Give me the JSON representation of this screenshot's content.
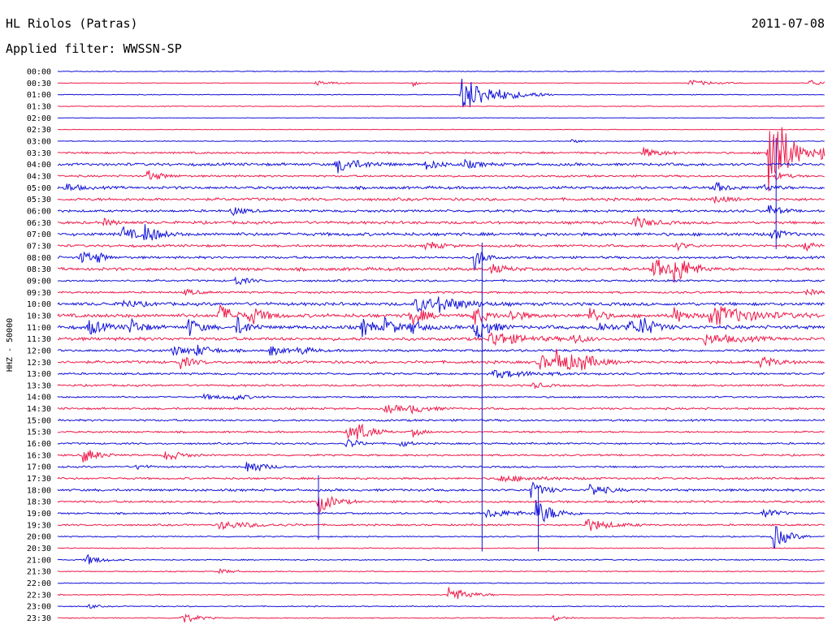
{
  "header": {
    "station": "HL Riolos (Patras)",
    "filter": "Applied filter: WWSSN-SP",
    "date": "2011-07-08"
  },
  "chart_data": {
    "type": "line",
    "title": "HL Riolos (Patras)",
    "subtitle": "Applied filter: WWSSN-SP",
    "date": "2011-07-08",
    "ylabel": "HHZ - 50000",
    "row_times": [
      "00:00",
      "00:30",
      "01:00",
      "01:30",
      "02:00",
      "02:30",
      "03:00",
      "03:30",
      "04:00",
      "04:30",
      "05:00",
      "05:30",
      "06:00",
      "06:30",
      "07:00",
      "07:30",
      "08:00",
      "08:30",
      "09:00",
      "09:30",
      "10:00",
      "10:30",
      "11:00",
      "11:30",
      "12:00",
      "12:30",
      "13:00",
      "13:30",
      "14:00",
      "14:30",
      "15:00",
      "15:30",
      "16:00",
      "16:30",
      "17:00",
      "17:30",
      "18:00",
      "18:30",
      "19:00",
      "19:30",
      "20:00",
      "20:30",
      "21:00",
      "21:30",
      "22:00",
      "22:30",
      "23:00",
      "23:30"
    ],
    "x_range_minutes": [
      0,
      30
    ],
    "colors": {
      "even": "#1010d8",
      "odd": "#ee1a4a"
    },
    "noise": [
      0.4,
      0.3,
      0.4,
      0.4,
      0.3,
      0.3,
      0.4,
      1.0,
      1.4,
      1.0,
      1.4,
      1.4,
      1.2,
      1.4,
      1.6,
      1.2,
      1.2,
      1.6,
      1.0,
      1.0,
      1.6,
      1.8,
      1.8,
      1.6,
      1.2,
      1.4,
      1.0,
      1.0,
      0.8,
      1.0,
      1.0,
      0.9,
      0.9,
      0.9,
      0.9,
      1.0,
      1.2,
      1.1,
      0.9,
      0.9,
      0.6,
      0.5,
      0.6,
      0.5,
      0.5,
      0.5,
      0.5,
      0.5
    ],
    "events": [
      {
        "row": 1,
        "t": 10.1,
        "amp": 3,
        "dur": 0.6
      },
      {
        "row": 1,
        "t": 13.9,
        "amp": 4,
        "dur": 0.2
      },
      {
        "row": 1,
        "t": 24.7,
        "amp": 4,
        "dur": 0.8
      },
      {
        "row": 1,
        "t": 29.4,
        "amp": 4,
        "dur": 0.5
      },
      {
        "row": 2,
        "t": 15.8,
        "amp": 22,
        "dur": 1.2
      },
      {
        "row": 6,
        "t": 20.1,
        "amp": 2,
        "dur": 0.4
      },
      {
        "row": 7,
        "t": 22.9,
        "amp": 6,
        "dur": 0.6
      },
      {
        "row": 7,
        "t": 27.8,
        "amp": 76,
        "dur": 0.6
      },
      {
        "row": 7,
        "t": 29.8,
        "amp": 10,
        "dur": 0.4
      },
      {
        "row": 8,
        "t": 10.9,
        "amp": 10,
        "dur": 0.8
      },
      {
        "row": 8,
        "t": 14.4,
        "amp": 6,
        "dur": 0.5
      },
      {
        "row": 8,
        "t": 15.9,
        "amp": 5,
        "dur": 0.5
      },
      {
        "row": 9,
        "t": 3.5,
        "amp": 7,
        "dur": 0.5
      },
      {
        "row": 9,
        "t": 28.1,
        "amp": 5,
        "dur": 0.4
      },
      {
        "row": 10,
        "t": 0.3,
        "amp": 6,
        "dur": 0.4
      },
      {
        "row": 10,
        "t": 25.7,
        "amp": 7,
        "dur": 0.4
      },
      {
        "row": 10,
        "t": 27.6,
        "amp": 5,
        "dur": 0.4
      },
      {
        "row": 11,
        "t": 25.7,
        "amp": 5,
        "dur": 0.4
      },
      {
        "row": 12,
        "t": 6.8,
        "amp": 6,
        "dur": 0.4
      },
      {
        "row": 12,
        "t": 27.8,
        "amp": 8,
        "dur": 0.4
      },
      {
        "row": 13,
        "t": 1.8,
        "amp": 4,
        "dur": 0.4
      },
      {
        "row": 13,
        "t": 22.5,
        "amp": 8,
        "dur": 0.6
      },
      {
        "row": 14,
        "t": 2.5,
        "amp": 9,
        "dur": 0.5
      },
      {
        "row": 14,
        "t": 3.4,
        "amp": 11,
        "dur": 0.5
      },
      {
        "row": 14,
        "t": 27.9,
        "amp": 8,
        "dur": 0.4
      },
      {
        "row": 15,
        "t": 14.4,
        "amp": 6,
        "dur": 0.5
      },
      {
        "row": 15,
        "t": 24.2,
        "amp": 5,
        "dur": 0.4
      },
      {
        "row": 15,
        "t": 29.2,
        "amp": 6,
        "dur": 0.4
      },
      {
        "row": 16,
        "t": 0.9,
        "amp": 9,
        "dur": 0.4
      },
      {
        "row": 16,
        "t": 1.5,
        "amp": 6,
        "dur": 0.3
      },
      {
        "row": 16,
        "t": 16.3,
        "amp": 18,
        "dur": 0.3
      },
      {
        "row": 17,
        "t": 16.9,
        "amp": 6,
        "dur": 0.5
      },
      {
        "row": 17,
        "t": 23.3,
        "amp": 14,
        "dur": 0.6
      },
      {
        "row": 17,
        "t": 24.1,
        "amp": 16,
        "dur": 0.6
      },
      {
        "row": 18,
        "t": 6.9,
        "amp": 7,
        "dur": 0.4
      },
      {
        "row": 19,
        "t": 5.0,
        "amp": 4,
        "dur": 0.4
      },
      {
        "row": 19,
        "t": 29.3,
        "amp": 4,
        "dur": 0.4
      },
      {
        "row": 20,
        "t": 2.5,
        "amp": 5,
        "dur": 0.6
      },
      {
        "row": 20,
        "t": 14.0,
        "amp": 9,
        "dur": 1.0
      },
      {
        "row": 20,
        "t": 14.9,
        "amp": 6,
        "dur": 1.0
      },
      {
        "row": 21,
        "t": 6.3,
        "amp": 14,
        "dur": 0.5
      },
      {
        "row": 21,
        "t": 7.5,
        "amp": 12,
        "dur": 0.5
      },
      {
        "row": 21,
        "t": 13.8,
        "amp": 12,
        "dur": 0.5
      },
      {
        "row": 21,
        "t": 16.2,
        "amp": 14,
        "dur": 0.4
      },
      {
        "row": 21,
        "t": 17.7,
        "amp": 9,
        "dur": 0.4
      },
      {
        "row": 21,
        "t": 20.8,
        "amp": 12,
        "dur": 0.4
      },
      {
        "row": 21,
        "t": 24.1,
        "amp": 10,
        "dur": 0.4
      },
      {
        "row": 21,
        "t": 25.5,
        "amp": 14,
        "dur": 1.4
      },
      {
        "row": 22,
        "t": 1.2,
        "amp": 10,
        "dur": 0.5
      },
      {
        "row": 22,
        "t": 2.8,
        "amp": 12,
        "dur": 0.4
      },
      {
        "row": 22,
        "t": 5.1,
        "amp": 12,
        "dur": 0.4
      },
      {
        "row": 22,
        "t": 7.0,
        "amp": 12,
        "dur": 0.4
      },
      {
        "row": 22,
        "t": 11.9,
        "amp": 12,
        "dur": 0.4
      },
      {
        "row": 22,
        "t": 12.8,
        "amp": 12,
        "dur": 0.4
      },
      {
        "row": 22,
        "t": 13.8,
        "amp": 10,
        "dur": 0.4
      },
      {
        "row": 22,
        "t": 16.3,
        "amp": 18,
        "dur": 0.5
      },
      {
        "row": 22,
        "t": 21.1,
        "amp": 8,
        "dur": 0.4
      },
      {
        "row": 22,
        "t": 22.3,
        "amp": 10,
        "dur": 0.4
      },
      {
        "row": 22,
        "t": 22.8,
        "amp": 12,
        "dur": 0.5
      },
      {
        "row": 23,
        "t": 16.9,
        "amp": 10,
        "dur": 1.0
      },
      {
        "row": 23,
        "t": 20.1,
        "amp": 8,
        "dur": 0.4
      },
      {
        "row": 23,
        "t": 25.3,
        "amp": 6,
        "dur": 1.2
      },
      {
        "row": 24,
        "t": 4.5,
        "amp": 6,
        "dur": 0.6
      },
      {
        "row": 24,
        "t": 5.4,
        "amp": 6,
        "dur": 0.6
      },
      {
        "row": 24,
        "t": 8.3,
        "amp": 7,
        "dur": 0.4
      },
      {
        "row": 24,
        "t": 9.4,
        "amp": 6,
        "dur": 0.4
      },
      {
        "row": 25,
        "t": 4.8,
        "amp": 8,
        "dur": 0.4
      },
      {
        "row": 25,
        "t": 18.8,
        "amp": 10,
        "dur": 0.5
      },
      {
        "row": 25,
        "t": 19.5,
        "amp": 14,
        "dur": 0.8
      },
      {
        "row": 25,
        "t": 20.4,
        "amp": 8,
        "dur": 0.5
      },
      {
        "row": 25,
        "t": 27.5,
        "amp": 8,
        "dur": 0.5
      },
      {
        "row": 26,
        "t": 17.0,
        "amp": 5,
        "dur": 1.4
      },
      {
        "row": 27,
        "t": 18.6,
        "amp": 4,
        "dur": 0.4
      },
      {
        "row": 28,
        "t": 5.7,
        "amp": 3,
        "dur": 0.8
      },
      {
        "row": 28,
        "t": 6.8,
        "amp": 3,
        "dur": 0.6
      },
      {
        "row": 29,
        "t": 12.8,
        "amp": 5,
        "dur": 0.8
      },
      {
        "row": 29,
        "t": 13.8,
        "amp": 4,
        "dur": 0.6
      },
      {
        "row": 31,
        "t": 11.3,
        "amp": 8,
        "dur": 0.5
      },
      {
        "row": 31,
        "t": 11.7,
        "amp": 10,
        "dur": 0.5
      },
      {
        "row": 31,
        "t": 13.9,
        "amp": 6,
        "dur": 0.3
      },
      {
        "row": 32,
        "t": 11.3,
        "amp": 7,
        "dur": 0.4
      },
      {
        "row": 32,
        "t": 13.4,
        "amp": 5,
        "dur": 0.3
      },
      {
        "row": 33,
        "t": 1.0,
        "amp": 10,
        "dur": 0.5
      },
      {
        "row": 33,
        "t": 4.2,
        "amp": 8,
        "dur": 0.5
      },
      {
        "row": 34,
        "t": 3.1,
        "amp": 4,
        "dur": 0.3
      },
      {
        "row": 34,
        "t": 7.4,
        "amp": 10,
        "dur": 0.5
      },
      {
        "row": 35,
        "t": 17.2,
        "amp": 4,
        "dur": 1.4
      },
      {
        "row": 36,
        "t": 18.5,
        "amp": 10,
        "dur": 0.5
      },
      {
        "row": 36,
        "t": 20.8,
        "amp": 9,
        "dur": 0.5
      },
      {
        "row": 37,
        "t": 10.2,
        "amp": 14,
        "dur": 0.5
      },
      {
        "row": 38,
        "t": 16.7,
        "amp": 5,
        "dur": 1.2
      },
      {
        "row": 38,
        "t": 18.7,
        "amp": 16,
        "dur": 0.6
      },
      {
        "row": 38,
        "t": 27.6,
        "amp": 8,
        "dur": 0.4
      },
      {
        "row": 39,
        "t": 6.3,
        "amp": 5,
        "dur": 1.2
      },
      {
        "row": 39,
        "t": 20.6,
        "amp": 9,
        "dur": 0.8
      },
      {
        "row": 40,
        "t": 28.0,
        "amp": 16,
        "dur": 0.5
      },
      {
        "row": 42,
        "t": 1.1,
        "amp": 7,
        "dur": 0.5
      },
      {
        "row": 43,
        "t": 6.3,
        "amp": 3,
        "dur": 0.5
      },
      {
        "row": 45,
        "t": 15.3,
        "amp": 12,
        "dur": 0.6
      },
      {
        "row": 46,
        "t": 1.2,
        "amp": 3,
        "dur": 0.3
      },
      {
        "row": 47,
        "t": 4.8,
        "amp": 8,
        "dur": 0.5
      },
      {
        "row": 47,
        "t": 19.4,
        "amp": 4,
        "dur": 0.3
      }
    ],
    "spikes": [
      {
        "t": 16.6,
        "from_row": 15,
        "to_row": 41
      },
      {
        "t": 28.1,
        "from_row": 6,
        "to_row": 15
      },
      {
        "t": 18.8,
        "from_row": 36,
        "to_row": 41
      },
      {
        "t": 10.2,
        "from_row": 35,
        "to_row": 40
      }
    ]
  }
}
